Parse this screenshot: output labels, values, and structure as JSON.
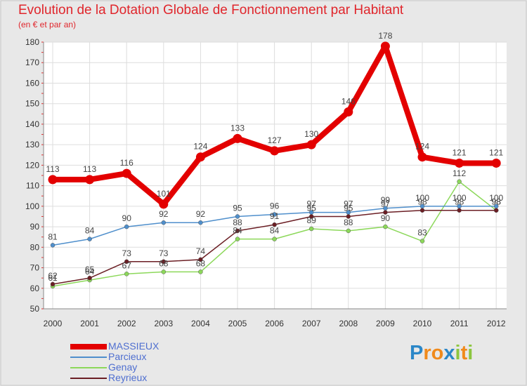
{
  "title": "Evolution de la Dotation Globale de Fonctionnement par Habitant",
  "subtitle": "(en € et par an)",
  "logo": {
    "letters": [
      "P",
      "r",
      "o",
      "x",
      "i",
      "t",
      "i"
    ],
    "colors": [
      "#2b87c8",
      "#f08a1c",
      "#f08a1c",
      "#2b87c8",
      "#8cc63f",
      "#f08a1c",
      "#8cc63f"
    ]
  },
  "chart_data": {
    "type": "line",
    "title": "Evolution de la Dotation Globale de Fonctionnement par Habitant",
    "ylabel": "(en € et par an)",
    "categories": [
      "2000",
      "2001",
      "2002",
      "2003",
      "2004",
      "2005",
      "2006",
      "2007",
      "2008",
      "2009",
      "2010",
      "2011",
      "2012"
    ],
    "ylim": [
      50,
      180
    ],
    "yticks": [
      "50",
      "60",
      "70",
      "80",
      "90",
      "100",
      "110",
      "120",
      "130",
      "140",
      "150",
      "160",
      "170",
      "180"
    ],
    "grid": true,
    "legend_position": "bottom-left",
    "series": [
      {
        "name": "MASSIEUX",
        "color": "#e30000",
        "values": [
          113,
          113,
          116,
          101,
          124,
          133,
          127,
          130,
          146,
          178,
          124,
          121,
          121
        ],
        "labels": [
          "113",
          "113",
          "116",
          "101",
          "124",
          "133",
          "127",
          "130",
          "146",
          "178",
          "124",
          "121",
          "121"
        ]
      },
      {
        "name": "Parcieux",
        "color": "#4f8fcc",
        "values": [
          81,
          84,
          90,
          92,
          92,
          95,
          96,
          97,
          97,
          99,
          100,
          100,
          100
        ],
        "labels": [
          "81",
          "84",
          "90",
          "92",
          "92",
          "95",
          "96",
          "97",
          "97",
          "99",
          "100",
          "100",
          "100"
        ]
      },
      {
        "name": "Genay",
        "color": "#8cd85a",
        "values": [
          61,
          64,
          67,
          68,
          68,
          84,
          84,
          89,
          88,
          90,
          83,
          112,
          98
        ],
        "labels": [
          "61",
          "64",
          "67",
          "68",
          "68",
          "84",
          "84",
          "89",
          "88",
          "90",
          "83",
          "112",
          "98"
        ]
      },
      {
        "name": "Reyrieux",
        "color": "#6b1e24",
        "values": [
          62,
          65,
          73,
          73,
          74,
          88,
          91,
          95,
          95,
          97,
          98,
          98,
          98
        ],
        "labels": [
          "62",
          "65",
          "73",
          "73",
          "74",
          "88",
          "91",
          "95",
          "95",
          "97",
          "98",
          "98",
          "98"
        ]
      }
    ]
  }
}
